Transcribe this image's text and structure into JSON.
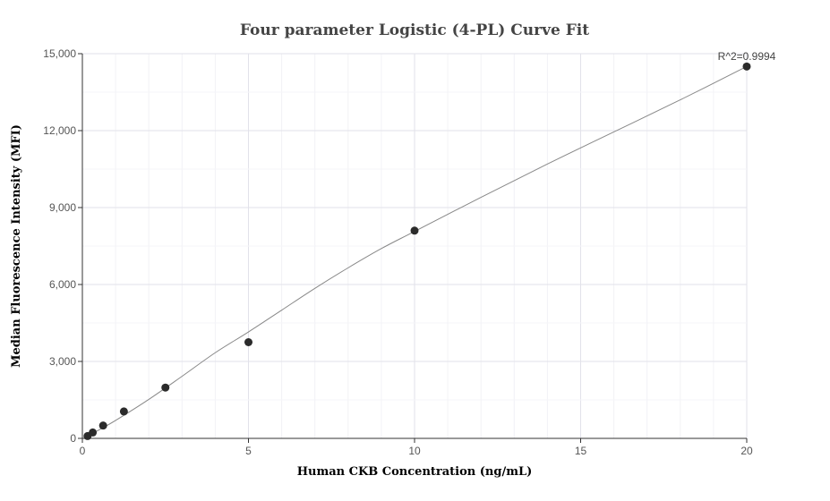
{
  "chart_data": {
    "type": "scatter",
    "title": "Four parameter Logistic (4-PL) Curve Fit",
    "xlabel": "Human CKB Concentration (ng/mL)",
    "ylabel": "Median Fluorescence Intensity (MFI)",
    "xlim": [
      0,
      20
    ],
    "ylim": [
      0,
      15000
    ],
    "x_ticks": [
      0,
      5,
      10,
      15,
      20
    ],
    "x_tick_labels": [
      "0",
      "5",
      "10",
      "15",
      "20"
    ],
    "y_ticks": [
      0,
      3000,
      6000,
      9000,
      12000,
      15000
    ],
    "y_tick_labels": [
      "0",
      "3,000",
      "6,000",
      "9,000",
      "12,000",
      "15,000"
    ],
    "grid": true,
    "annotation": "R^2=0.9994",
    "series": [
      {
        "points": [
          {
            "x": 0.156,
            "y": 90
          },
          {
            "x": 0.3125,
            "y": 230
          },
          {
            "x": 0.625,
            "y": 500
          },
          {
            "x": 1.25,
            "y": 1050
          },
          {
            "x": 2.5,
            "y": 1980
          },
          {
            "x": 5,
            "y": 3750
          },
          {
            "x": 10,
            "y": 8100
          },
          {
            "x": 20,
            "y": 14500
          }
        ]
      }
    ],
    "fit_curve": {
      "model": "4PL",
      "x": [
        0.15,
        0.5,
        1,
        2,
        3,
        4,
        5,
        6,
        7,
        8,
        9,
        10,
        12,
        14,
        16,
        18,
        20
      ],
      "y": [
        80,
        330,
        700,
        1520,
        2420,
        3340,
        4150,
        5000,
        5850,
        6650,
        7400,
        8070,
        9400,
        10700,
        11950,
        13200,
        14500
      ]
    },
    "colors": {
      "point": "#2b2b2b",
      "curve": "#888888",
      "grid": "#e6e6f0",
      "axis": "#333333"
    }
  }
}
